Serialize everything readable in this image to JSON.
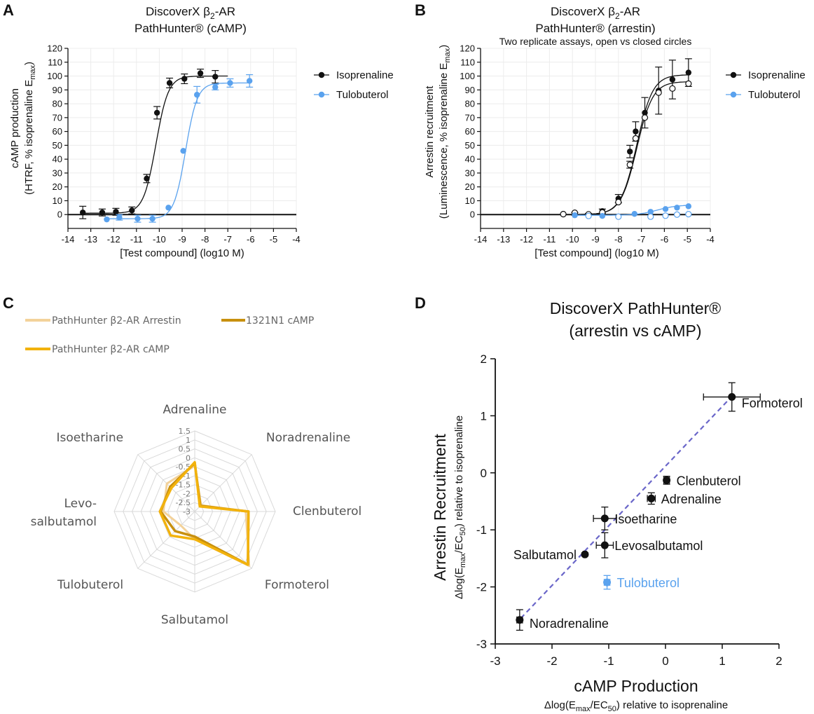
{
  "colors": {
    "black": "#111111",
    "blue": "#5aa2ee",
    "arrestin_radar": "#f3d29a",
    "camp_1321": "#c8900e",
    "camp_pathhunter": "#f2b20c",
    "grid": "#ececec",
    "radar_grid": "#d9d9d9",
    "trend": "#6a66c9"
  },
  "chart_data": [
    {
      "panel": "A",
      "type": "scatter",
      "title_line1": "DiscoverX β",
      "title_sub": "2",
      "title_line1_end": "-AR",
      "title_line2": "PathHunter® (cAMP)",
      "xlabel": "[Test compound] (log10 M)",
      "ylabel_line1": "cAMP production",
      "ylabel_line2_pre": "(HTRF, % isoprenaline E",
      "ylabel_line2_sub": "max",
      "ylabel_line2_post": ")",
      "xlim": [
        -14,
        -4
      ],
      "ylim": [
        -10,
        120
      ],
      "xticks": [
        -14,
        -13,
        -12,
        -11,
        -10,
        -9,
        -8,
        -7,
        -6,
        -5,
        -4
      ],
      "yticks": [
        0,
        10,
        20,
        30,
        40,
        50,
        60,
        70,
        80,
        90,
        100,
        110,
        120
      ],
      "grid": true,
      "legend_position": "right",
      "series": [
        {
          "name": "Isoprenaline",
          "color": "#111111",
          "x": [
            -13.35,
            -12.5,
            -11.9,
            -11.2,
            -10.55,
            -10.1,
            -9.55,
            -8.9,
            -8.2,
            -7.55
          ],
          "y": [
            1.5,
            1.5,
            2.0,
            3.0,
            26.0,
            73.5,
            95.0,
            98.0,
            102.0,
            99.5
          ],
          "err": [
            4.5,
            2.5,
            2.5,
            2.5,
            3.0,
            4.5,
            3.5,
            3.5,
            3.0,
            4.5
          ],
          "fit": {
            "bottom": 1.0,
            "top": 100.0,
            "logec50": -10.15,
            "hill": 1.6,
            "from": -13.35,
            "to": -7.0
          }
        },
        {
          "name": "Tulobuterol",
          "color": "#5aa2ee",
          "x": [
            -12.3,
            -11.75,
            -10.95,
            -10.3,
            -9.6,
            -8.95,
            -8.35,
            -7.55,
            -6.9,
            -6.05
          ],
          "y": [
            -3.5,
            -2.0,
            -3.0,
            -3.0,
            5.0,
            46.0,
            86.5,
            92.0,
            95.0,
            96.5
          ],
          "err": [
            0,
            2.0,
            2.5,
            2.5,
            0,
            0,
            6.0,
            2.0,
            3.0,
            4.5
          ],
          "fit": {
            "bottom": -3.0,
            "top": 95.0,
            "logec50": -8.85,
            "hill": 1.7,
            "from": -12.3,
            "to": -6.0
          }
        }
      ]
    },
    {
      "panel": "B",
      "type": "scatter",
      "title_line1": "DiscoverX β",
      "title_sub": "2",
      "title_line1_end": "-AR",
      "title_line2": "PathHunter® (arrestin)",
      "title_line3": "Two replicate assays, open vs closed circles",
      "xlabel": "[Test compound] (log10 M)",
      "ylabel_line1": "Arrestin recruitment",
      "ylabel_line2_pre": "(Luminescence, % isoprenaline E",
      "ylabel_line2_sub": "max",
      "ylabel_line2_post": ")",
      "xlim": [
        -14,
        -4
      ],
      "ylim": [
        -10,
        120
      ],
      "xticks": [
        -14,
        -13,
        -12,
        -11,
        -10,
        -9,
        -8,
        -7,
        -6,
        -5,
        -4
      ],
      "yticks": [
        0,
        10,
        20,
        30,
        40,
        50,
        60,
        70,
        80,
        90,
        100,
        110,
        120
      ],
      "grid": true,
      "legend_position": "right",
      "series": [
        {
          "name": "Isoprenaline",
          "color": "#111111",
          "x": [
            -10.4,
            -9.9,
            -9.3,
            -8.7,
            -8.0,
            -7.5,
            -7.25,
            -6.85,
            -6.25,
            -5.65,
            -4.95
          ],
          "y": [
            0.5,
            0.5,
            0.3,
            2.5,
            11.5,
            45.5,
            60.0,
            73.5,
            89.5,
            97.5,
            102.5
          ],
          "err": [
            0,
            1.0,
            0.5,
            1.5,
            3.0,
            4.5,
            7.0,
            11.0,
            17.0,
            14.0,
            10.0
          ],
          "fit": {
            "bottom": 0.0,
            "top": 101.0,
            "logec50": -7.2,
            "hill": 1.25,
            "from": -10.4,
            "to": -4.95
          }
        },
        {
          "name": "Isoprenaline (replicate)",
          "color": "#111111",
          "open": true,
          "x": [
            -10.4,
            -9.9,
            -9.3,
            -8.7,
            -8.0,
            -7.5,
            -7.25,
            -6.85,
            -6.25,
            -5.65,
            -4.95
          ],
          "y": [
            0.3,
            1.3,
            0.2,
            1.5,
            9.0,
            36.0,
            55.0,
            70.0,
            88.0,
            91.0,
            94.5
          ],
          "err": [
            0,
            0,
            0,
            0,
            0,
            2.5,
            0,
            0,
            0,
            0,
            0
          ],
          "fit": {
            "bottom": 0.0,
            "top": 96.0,
            "logec50": -7.2,
            "hill": 1.25,
            "from": -10.4,
            "to": -4.95
          }
        },
        {
          "name": "Tulobuterol",
          "color": "#5aa2ee",
          "x": [
            -9.9,
            -9.3,
            -8.7,
            -8.0,
            -7.3,
            -6.6,
            -5.95,
            -5.45,
            -4.95
          ],
          "y": [
            -0.5,
            -1.0,
            -1.0,
            -1.5,
            0.5,
            2.0,
            4.0,
            5.0,
            6.0
          ],
          "err": [
            0,
            0,
            0,
            0,
            0,
            0,
            0,
            0,
            0
          ],
          "fit": {
            "bottom": -0.5,
            "top": 7.0,
            "logec50": -6.3,
            "hill": 1.0,
            "from": -9.9,
            "to": -4.95
          }
        },
        {
          "name": "Tulobuterol (replicate)",
          "color": "#5aa2ee",
          "open": true,
          "x": [
            -9.3,
            -8.0,
            -6.6,
            -5.95,
            -5.45,
            -4.95
          ],
          "y": [
            -1.0,
            -1.5,
            -1.5,
            -0.8,
            0.0,
            0.3
          ],
          "err": [
            0,
            0,
            0,
            0,
            0,
            0
          ]
        }
      ]
    },
    {
      "panel": "C",
      "type": "radar",
      "axes": [
        "Adrenaline",
        "Noradrenaline",
        "Clenbuterol",
        "Formoterol",
        "Salbutamol",
        "Tulobuterol",
        "Levosalbutamol",
        "Isoetharine"
      ],
      "axis_labels": [
        [
          "Adrenaline"
        ],
        [
          "Noradrenaline"
        ],
        [
          "Clenbuterol"
        ],
        [
          "Formoterol"
        ],
        [
          "Salbutamol"
        ],
        [
          "Tulobuterol"
        ],
        [
          "Levo-",
          "salbutamol"
        ],
        [
          "Isoetharine"
        ]
      ],
      "range": [
        -3,
        1.5
      ],
      "rings": [
        1.5,
        1,
        0.5,
        0,
        -0.5,
        -1,
        -1.5,
        -2,
        -2.5,
        -3
      ],
      "ring_labels": [
        "1.5",
        "1",
        "0.5",
        "0",
        "-0.5",
        "-1",
        "-1.5",
        "-2",
        "-2.5",
        "-3"
      ],
      "series": [
        {
          "name": "PathHunter β2-AR Arrestin",
          "color": "#f3d29a",
          "values": [
            -0.45,
            -2.5,
            -0.15,
            1.3,
            -1.45,
            -1.9,
            -1.25,
            -0.8
          ]
        },
        {
          "name": "1321N1 cAMP",
          "color": "#c8900e",
          "values": [
            -0.3,
            -2.55,
            0.0,
            1.2,
            -1.6,
            -1.45,
            -1.1,
            -1.05
          ]
        },
        {
          "name": "PathHunter β2-AR cAMP",
          "color": "#f2b20c",
          "values": [
            -0.25,
            -2.6,
            0.0,
            1.2,
            -1.45,
            -1.1,
            -1.05,
            -1.15
          ]
        }
      ],
      "legend_position": "top-left"
    },
    {
      "panel": "D",
      "type": "scatter",
      "title_line1": "DiscoverX PathHunter®",
      "title_line2": "(arrestin vs cAMP)",
      "xlabel": "cAMP Production",
      "xsublabel_pre": "Δlog(E",
      "xsublabel_sub1": "max",
      "xsublabel_mid": "/EC",
      "xsublabel_sub2": "50",
      "xsublabel_post": ") relative to isoprenaline",
      "ylabel": "Arrestin Recruitment",
      "ysublabel_pre": "Δlog(E",
      "ysublabel_sub1": "max",
      "ysublabel_mid": "/EC",
      "ysublabel_sub2": "50",
      "ysublabel_post": ") relative to isoprenaline",
      "xlim": [
        -3,
        2
      ],
      "ylim": [
        -3,
        2
      ],
      "xticks": [
        -3,
        -2,
        -1,
        0,
        1,
        2
      ],
      "yticks": [
        -3,
        -2,
        -1,
        0,
        1,
        2
      ],
      "trend": {
        "x": [
          -2.55,
          1.15
        ],
        "y": [
          -2.55,
          1.32
        ]
      },
      "points": [
        {
          "label": "Formoterol",
          "x": 1.17,
          "y": 1.33,
          "xerr": 0.5,
          "yerr": 0.25,
          "color": "#111111",
          "label_side": "right"
        },
        {
          "label": "Clenbuterol",
          "x": 0.02,
          "y": -0.13,
          "xerr": 0.05,
          "yerr": 0.07,
          "color": "#111111",
          "label_side": "right"
        },
        {
          "label": "Adrenaline",
          "x": -0.25,
          "y": -0.45,
          "xerr": 0.07,
          "yerr": 0.1,
          "color": "#111111",
          "label_side": "right"
        },
        {
          "label": "Isoetharine",
          "x": -1.07,
          "y": -0.8,
          "xerr": 0.2,
          "yerr": 0.2,
          "color": "#111111",
          "label_side": "right"
        },
        {
          "label": "Levosalbutamol",
          "x": -1.07,
          "y": -1.27,
          "xerr": 0.15,
          "yerr": 0.22,
          "color": "#111111",
          "label_side": "right"
        },
        {
          "label": "Salbutamol",
          "x": -1.42,
          "y": -1.43,
          "xerr": 0.03,
          "yerr": 0.03,
          "color": "#111111",
          "label_side": "left"
        },
        {
          "label": "Tulobuterol",
          "x": -1.03,
          "y": -1.92,
          "xerr": 0.05,
          "yerr": 0.12,
          "color": "#5aa2ee",
          "label_side": "right"
        },
        {
          "label": "Noradrenaline",
          "x": -2.57,
          "y": -2.58,
          "xerr": 0.05,
          "yerr": 0.18,
          "color": "#111111",
          "label_side": "right"
        }
      ]
    }
  ],
  "panel_letters": [
    "A",
    "B",
    "C",
    "D"
  ]
}
